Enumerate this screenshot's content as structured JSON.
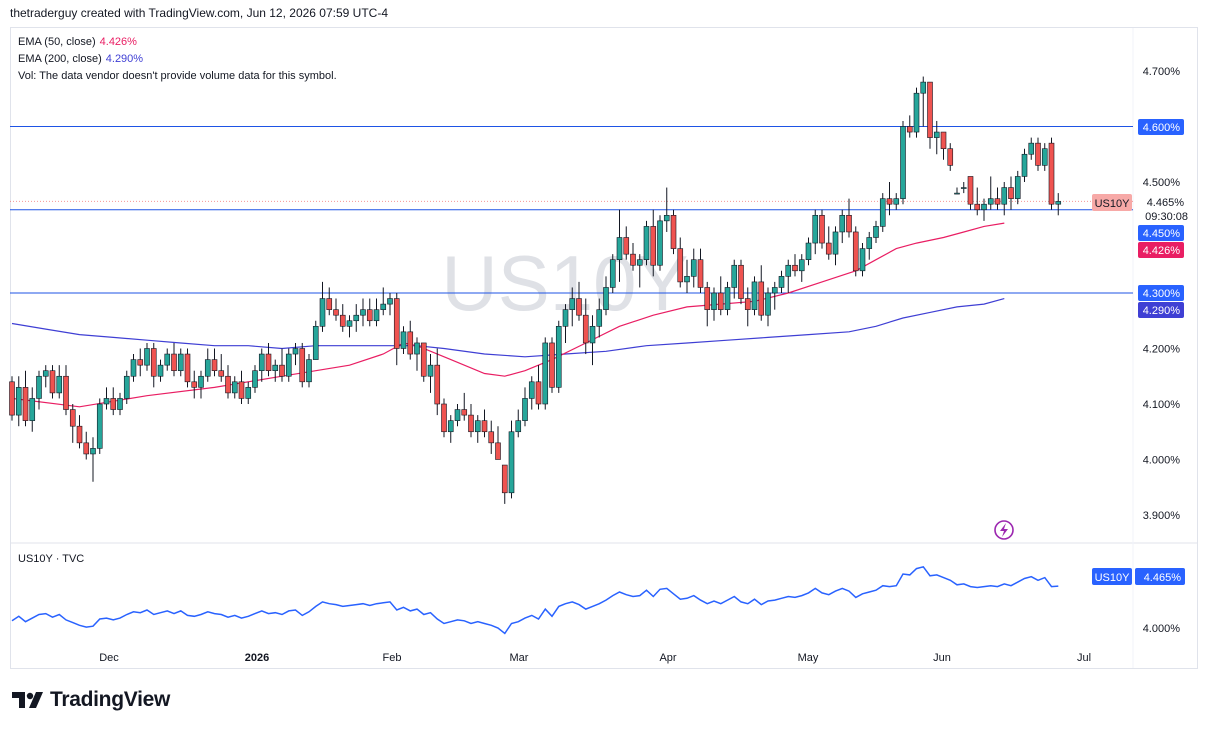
{
  "header": {
    "attribution": "thetraderguy created with TradingView.com, Jun 12, 2026 07:59 UTC-4"
  },
  "legend": {
    "ema50_label": "EMA (50, close)",
    "ema50_value": "4.426%",
    "ema50_color": "#e91e63",
    "ema200_label": "EMA (200, close)",
    "ema200_value": "4.290%",
    "ema200_color": "#3f3fd4",
    "vol_text": "Vol: The data vendor doesn't provide volume data for this symbol."
  },
  "watermark": "US10Y",
  "lower_pane": {
    "label": "US10Y · TVC",
    "badge_symbol": "US10Y",
    "badge_value": "4.465%",
    "tick_4000": "4.000%"
  },
  "price_badges": {
    "symbol": "US10Y",
    "last": "4.465%",
    "countdown": "09:30:08",
    "line_4600": "4.600%",
    "line_4450": "4.450%",
    "ema50": "4.426%",
    "line_4300": "4.300%",
    "ema200": "4.290%"
  },
  "colors": {
    "up": "#26a69a",
    "down": "#ef5350",
    "last_badge": "#f7a9a7",
    "hline": "#2962ff",
    "price_line": "#1e53e5"
  },
  "logo_text": "TradingView",
  "chart_data": {
    "type": "candlestick",
    "symbol": "US10Y",
    "y_unit": "%",
    "ylim": [
      3.88,
      4.73
    ],
    "y_ticks": [
      "4.700%",
      "4.600%",
      "4.500%",
      "4.200%",
      "4.100%",
      "4.000%",
      "3.900%"
    ],
    "x_ticks": [
      "Dec",
      "2026",
      "Feb",
      "Mar",
      "Apr",
      "May",
      "Jun",
      "Jul"
    ],
    "horizontal_lines": [
      4.6,
      4.45,
      4.3
    ],
    "last_value": 4.465,
    "ema50_last": 4.426,
    "ema200_last": 4.29,
    "ohlc": [
      [
        4.14,
        4.15,
        4.07,
        4.08
      ],
      [
        4.08,
        4.15,
        4.06,
        4.13
      ],
      [
        4.13,
        4.16,
        4.06,
        4.07
      ],
      [
        4.07,
        4.13,
        4.05,
        4.11
      ],
      [
        4.11,
        4.16,
        4.09,
        4.15
      ],
      [
        4.15,
        4.17,
        4.13,
        4.16
      ],
      [
        4.16,
        4.17,
        4.11,
        4.12
      ],
      [
        4.12,
        4.17,
        4.11,
        4.15
      ],
      [
        4.15,
        4.17,
        4.08,
        4.09
      ],
      [
        4.09,
        4.1,
        4.03,
        4.06
      ],
      [
        4.06,
        4.08,
        4.02,
        4.03
      ],
      [
        4.03,
        4.05,
        4.0,
        4.01
      ],
      [
        4.01,
        4.04,
        3.96,
        4.02
      ],
      [
        4.02,
        4.11,
        4.01,
        4.1
      ],
      [
        4.1,
        4.13,
        4.09,
        4.11
      ],
      [
        4.11,
        4.13,
        4.08,
        4.09
      ],
      [
        4.09,
        4.12,
        4.08,
        4.11
      ],
      [
        4.11,
        4.16,
        4.1,
        4.15
      ],
      [
        4.15,
        4.19,
        4.14,
        4.18
      ],
      [
        4.18,
        4.2,
        4.15,
        4.17
      ],
      [
        4.17,
        4.21,
        4.16,
        4.2
      ],
      [
        4.2,
        4.21,
        4.13,
        4.15
      ],
      [
        4.15,
        4.18,
        4.14,
        4.17
      ],
      [
        4.17,
        4.2,
        4.16,
        4.19
      ],
      [
        4.19,
        4.21,
        4.15,
        4.16
      ],
      [
        4.16,
        4.2,
        4.15,
        4.19
      ],
      [
        4.19,
        4.2,
        4.13,
        4.14
      ],
      [
        4.14,
        4.16,
        4.11,
        4.13
      ],
      [
        4.13,
        4.16,
        4.11,
        4.15
      ],
      [
        4.15,
        4.2,
        4.14,
        4.18
      ],
      [
        4.18,
        4.2,
        4.15,
        4.16
      ],
      [
        4.16,
        4.19,
        4.14,
        4.15
      ],
      [
        4.15,
        4.17,
        4.11,
        4.12
      ],
      [
        4.12,
        4.15,
        4.11,
        4.14
      ],
      [
        4.14,
        4.16,
        4.1,
        4.11
      ],
      [
        4.11,
        4.14,
        4.1,
        4.13
      ],
      [
        4.13,
        4.17,
        4.12,
        4.16
      ],
      [
        4.16,
        4.2,
        4.14,
        4.19
      ],
      [
        4.19,
        4.21,
        4.15,
        4.16
      ],
      [
        4.16,
        4.18,
        4.14,
        4.17
      ],
      [
        4.17,
        4.2,
        4.14,
        4.15
      ],
      [
        4.15,
        4.2,
        4.14,
        4.19
      ],
      [
        4.19,
        4.21,
        4.17,
        4.2
      ],
      [
        4.2,
        4.21,
        4.13,
        4.14
      ],
      [
        4.14,
        4.19,
        4.13,
        4.18
      ],
      [
        4.18,
        4.25,
        4.18,
        4.24
      ],
      [
        4.24,
        4.32,
        4.23,
        4.29
      ],
      [
        4.29,
        4.31,
        4.26,
        4.27
      ],
      [
        4.27,
        4.29,
        4.25,
        4.26
      ],
      [
        4.26,
        4.28,
        4.23,
        4.24
      ],
      [
        4.24,
        4.26,
        4.22,
        4.25
      ],
      [
        4.25,
        4.28,
        4.23,
        4.26
      ],
      [
        4.26,
        4.29,
        4.24,
        4.27
      ],
      [
        4.27,
        4.29,
        4.24,
        4.25
      ],
      [
        4.25,
        4.29,
        4.24,
        4.27
      ],
      [
        4.27,
        4.31,
        4.26,
        4.28
      ],
      [
        4.28,
        4.3,
        4.26,
        4.29
      ],
      [
        4.29,
        4.3,
        4.17,
        4.2
      ],
      [
        4.2,
        4.24,
        4.19,
        4.23
      ],
      [
        4.23,
        4.25,
        4.18,
        4.19
      ],
      [
        4.19,
        4.22,
        4.16,
        4.21
      ],
      [
        4.21,
        4.21,
        4.14,
        4.15
      ],
      [
        4.15,
        4.19,
        4.12,
        4.17
      ],
      [
        4.17,
        4.2,
        4.08,
        4.1
      ],
      [
        4.1,
        4.11,
        4.04,
        4.05
      ],
      [
        4.05,
        4.08,
        4.03,
        4.07
      ],
      [
        4.07,
        4.1,
        4.06,
        4.09
      ],
      [
        4.09,
        4.12,
        4.07,
        4.08
      ],
      [
        4.08,
        4.1,
        4.04,
        4.05
      ],
      [
        4.05,
        4.08,
        4.03,
        4.07
      ],
      [
        4.07,
        4.09,
        4.04,
        4.05
      ],
      [
        4.05,
        4.07,
        4.01,
        4.03
      ],
      [
        4.03,
        4.06,
        4.0,
        4.0
      ],
      [
        3.99,
        3.99,
        3.92,
        3.94
      ],
      [
        3.94,
        4.07,
        3.93,
        4.05
      ],
      [
        4.05,
        4.09,
        4.04,
        4.07
      ],
      [
        4.07,
        4.13,
        4.06,
        4.11
      ],
      [
        4.11,
        4.15,
        4.09,
        4.14
      ],
      [
        4.14,
        4.17,
        4.09,
        4.1
      ],
      [
        4.1,
        4.22,
        4.09,
        4.21
      ],
      [
        4.21,
        4.22,
        4.12,
        4.13
      ],
      [
        4.13,
        4.25,
        4.12,
        4.24
      ],
      [
        4.24,
        4.28,
        4.21,
        4.27
      ],
      [
        4.27,
        4.31,
        4.24,
        4.29
      ],
      [
        4.29,
        4.32,
        4.25,
        4.26
      ],
      [
        4.26,
        4.29,
        4.19,
        4.21
      ],
      [
        4.21,
        4.26,
        4.17,
        4.24
      ],
      [
        4.24,
        4.29,
        4.22,
        4.27
      ],
      [
        4.27,
        4.33,
        4.26,
        4.31
      ],
      [
        4.31,
        4.37,
        4.3,
        4.36
      ],
      [
        4.36,
        4.45,
        4.32,
        4.4
      ],
      [
        4.4,
        4.42,
        4.36,
        4.37
      ],
      [
        4.37,
        4.39,
        4.34,
        4.35
      ],
      [
        4.35,
        4.37,
        4.31,
        4.36
      ],
      [
        4.36,
        4.43,
        4.35,
        4.42
      ],
      [
        4.42,
        4.45,
        4.33,
        4.35
      ],
      [
        4.35,
        4.44,
        4.34,
        4.43
      ],
      [
        4.43,
        4.49,
        4.41,
        4.44
      ],
      [
        4.44,
        4.45,
        4.37,
        4.38
      ],
      [
        4.38,
        4.4,
        4.31,
        4.32
      ],
      [
        4.32,
        4.36,
        4.3,
        4.33
      ],
      [
        4.33,
        4.38,
        4.31,
        4.36
      ],
      [
        4.36,
        4.38,
        4.3,
        4.31
      ],
      [
        4.31,
        4.32,
        4.24,
        4.27
      ],
      [
        4.27,
        4.31,
        4.25,
        4.3
      ],
      [
        4.3,
        4.33,
        4.26,
        4.27
      ],
      [
        4.27,
        4.32,
        4.26,
        4.31
      ],
      [
        4.31,
        4.36,
        4.29,
        4.35
      ],
      [
        4.35,
        4.36,
        4.28,
        4.29
      ],
      [
        4.29,
        4.31,
        4.24,
        4.27
      ],
      [
        4.27,
        4.33,
        4.26,
        4.32
      ],
      [
        4.32,
        4.35,
        4.25,
        4.26
      ],
      [
        4.26,
        4.31,
        4.24,
        4.3
      ],
      [
        4.3,
        4.32,
        4.27,
        4.31
      ],
      [
        4.31,
        4.34,
        4.3,
        4.33
      ],
      [
        4.33,
        4.36,
        4.3,
        4.35
      ],
      [
        4.35,
        4.37,
        4.33,
        4.34
      ],
      [
        4.34,
        4.37,
        4.32,
        4.36
      ],
      [
        4.36,
        4.4,
        4.35,
        4.39
      ],
      [
        4.39,
        4.45,
        4.37,
        4.44
      ],
      [
        4.44,
        4.45,
        4.38,
        4.39
      ],
      [
        4.39,
        4.42,
        4.36,
        4.37
      ],
      [
        4.37,
        4.42,
        4.35,
        4.41
      ],
      [
        4.41,
        4.45,
        4.39,
        4.44
      ],
      [
        4.44,
        4.47,
        4.4,
        4.41
      ],
      [
        4.41,
        4.42,
        4.33,
        4.34
      ],
      [
        4.34,
        4.39,
        4.33,
        4.38
      ],
      [
        4.38,
        4.41,
        4.36,
        4.4
      ],
      [
        4.4,
        4.43,
        4.39,
        4.42
      ],
      [
        4.42,
        4.48,
        4.41,
        4.47
      ],
      [
        4.47,
        4.5,
        4.44,
        4.46
      ],
      [
        4.46,
        4.48,
        4.45,
        4.47
      ],
      [
        4.47,
        4.61,
        4.46,
        4.6
      ],
      [
        4.6,
        4.62,
        4.58,
        4.59
      ],
      [
        4.59,
        4.67,
        4.58,
        4.66
      ],
      [
        4.66,
        4.69,
        4.6,
        4.68
      ],
      [
        4.68,
        4.68,
        4.56,
        4.58
      ],
      [
        4.58,
        4.61,
        4.55,
        4.59
      ],
      [
        4.59,
        4.59,
        4.54,
        4.56
      ],
      [
        4.56,
        4.57,
        4.52,
        4.53
      ],
      [
        4.48,
        4.49,
        4.48,
        4.48
      ],
      [
        4.49,
        4.5,
        4.48,
        4.49
      ],
      [
        4.51,
        4.51,
        4.45,
        4.46
      ],
      [
        4.46,
        4.49,
        4.44,
        4.45
      ],
      [
        4.45,
        4.47,
        4.43,
        4.46
      ],
      [
        4.46,
        4.51,
        4.45,
        4.47
      ],
      [
        4.47,
        4.49,
        4.45,
        4.46
      ],
      [
        4.46,
        4.5,
        4.44,
        4.49
      ],
      [
        4.49,
        4.51,
        4.45,
        4.47
      ],
      [
        4.47,
        4.52,
        4.46,
        4.51
      ],
      [
        4.51,
        4.56,
        4.5,
        4.55
      ],
      [
        4.55,
        4.58,
        4.54,
        4.57
      ],
      [
        4.57,
        4.58,
        4.52,
        4.53
      ],
      [
        4.53,
        4.57,
        4.52,
        4.56
      ],
      [
        4.57,
        4.58,
        4.45,
        4.46
      ],
      [
        4.46,
        4.48,
        4.44,
        4.465
      ]
    ],
    "ema50": [
      [
        0,
        4.11
      ],
      [
        10,
        4.095
      ],
      [
        20,
        4.115
      ],
      [
        30,
        4.13
      ],
      [
        40,
        4.15
      ],
      [
        45,
        4.16
      ],
      [
        50,
        4.17
      ],
      [
        55,
        4.19
      ],
      [
        58,
        4.21
      ],
      [
        60,
        4.205
      ],
      [
        65,
        4.18
      ],
      [
        70,
        4.155
      ],
      [
        73,
        4.15
      ],
      [
        76,
        4.16
      ],
      [
        80,
        4.18
      ],
      [
        85,
        4.21
      ],
      [
        90,
        4.24
      ],
      [
        95,
        4.26
      ],
      [
        100,
        4.275
      ],
      [
        105,
        4.28
      ],
      [
        110,
        4.285
      ],
      [
        115,
        4.3
      ],
      [
        120,
        4.32
      ],
      [
        125,
        4.34
      ],
      [
        128,
        4.36
      ],
      [
        131,
        4.38
      ],
      [
        134,
        4.39
      ],
      [
        138,
        4.4
      ],
      [
        141,
        4.41
      ],
      [
        144,
        4.42
      ],
      [
        147,
        4.426
      ]
    ],
    "ema200": [
      [
        0,
        4.245
      ],
      [
        5,
        4.235
      ],
      [
        10,
        4.225
      ],
      [
        15,
        4.22
      ],
      [
        20,
        4.215
      ],
      [
        25,
        4.21
      ],
      [
        30,
        4.205
      ],
      [
        35,
        4.205
      ],
      [
        40,
        4.2
      ],
      [
        45,
        4.205
      ],
      [
        50,
        4.205
      ],
      [
        55,
        4.205
      ],
      [
        60,
        4.205
      ],
      [
        64,
        4.2
      ],
      [
        70,
        4.19
      ],
      [
        76,
        4.185
      ],
      [
        82,
        4.19
      ],
      [
        88,
        4.195
      ],
      [
        94,
        4.205
      ],
      [
        100,
        4.21
      ],
      [
        106,
        4.215
      ],
      [
        112,
        4.22
      ],
      [
        118,
        4.225
      ],
      [
        124,
        4.23
      ],
      [
        128,
        4.24
      ],
      [
        132,
        4.255
      ],
      [
        136,
        4.265
      ],
      [
        140,
        4.275
      ],
      [
        144,
        4.28
      ],
      [
        147,
        4.29
      ]
    ],
    "lower_pane_line": "close series of ohlc"
  }
}
